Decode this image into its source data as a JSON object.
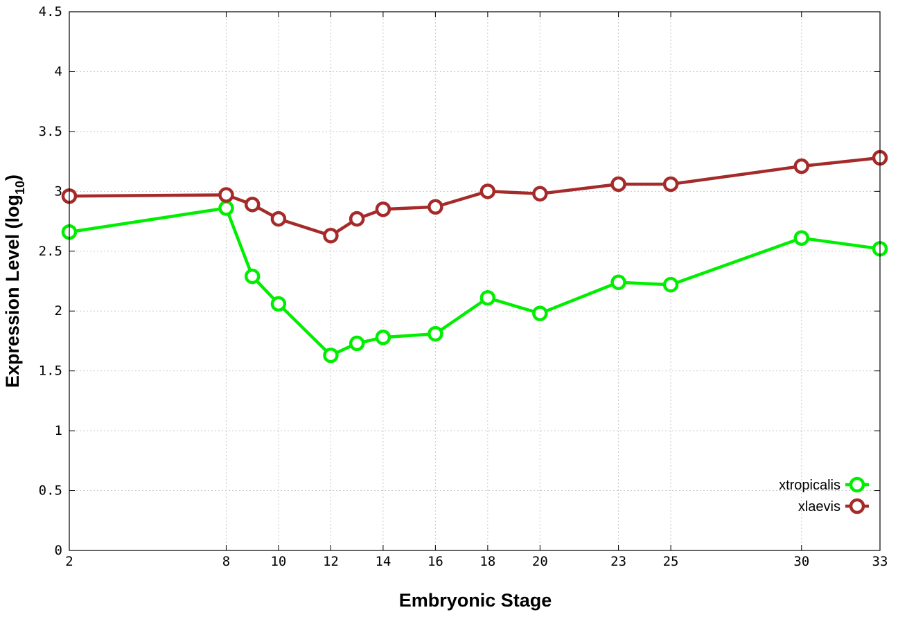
{
  "chart_data": {
    "type": "line",
    "x_tick_labels": [
      "2",
      "8",
      "10",
      "12",
      "14",
      "16",
      "18",
      "20",
      "23",
      "25",
      "30",
      "33"
    ],
    "y_tick_labels": [
      "0",
      "0.5",
      "1",
      "1.5",
      "2",
      "2.5",
      "3",
      "3.5",
      "4",
      "4.5"
    ],
    "xlabel": "Embryonic Stage",
    "ylabel": "Expression Level (log",
    "ylabel_subscript": "10",
    "ylabel_suffix": ")",
    "ylim": [
      0,
      4.5
    ],
    "grid": true,
    "legend_position": "bottom-right",
    "series": [
      {
        "name": "xtropicalis",
        "color": "#00ee00",
        "x": [
          2,
          8,
          9,
          10,
          12,
          13,
          14,
          16,
          18,
          20,
          23,
          25,
          30,
          33
        ],
        "values": [
          2.66,
          2.86,
          2.29,
          2.06,
          1.63,
          1.73,
          1.78,
          1.81,
          2.11,
          1.98,
          2.24,
          2.22,
          2.61,
          2.52
        ]
      },
      {
        "name": "xlaevis",
        "color": "#a52a2a",
        "x": [
          2,
          8,
          9,
          10,
          12,
          13,
          14,
          16,
          18,
          20,
          23,
          25,
          30,
          33
        ],
        "values": [
          2.96,
          2.97,
          2.89,
          2.77,
          2.63,
          2.77,
          2.85,
          2.87,
          3.0,
          2.98,
          3.06,
          3.06,
          3.21,
          3.28
        ]
      }
    ]
  }
}
